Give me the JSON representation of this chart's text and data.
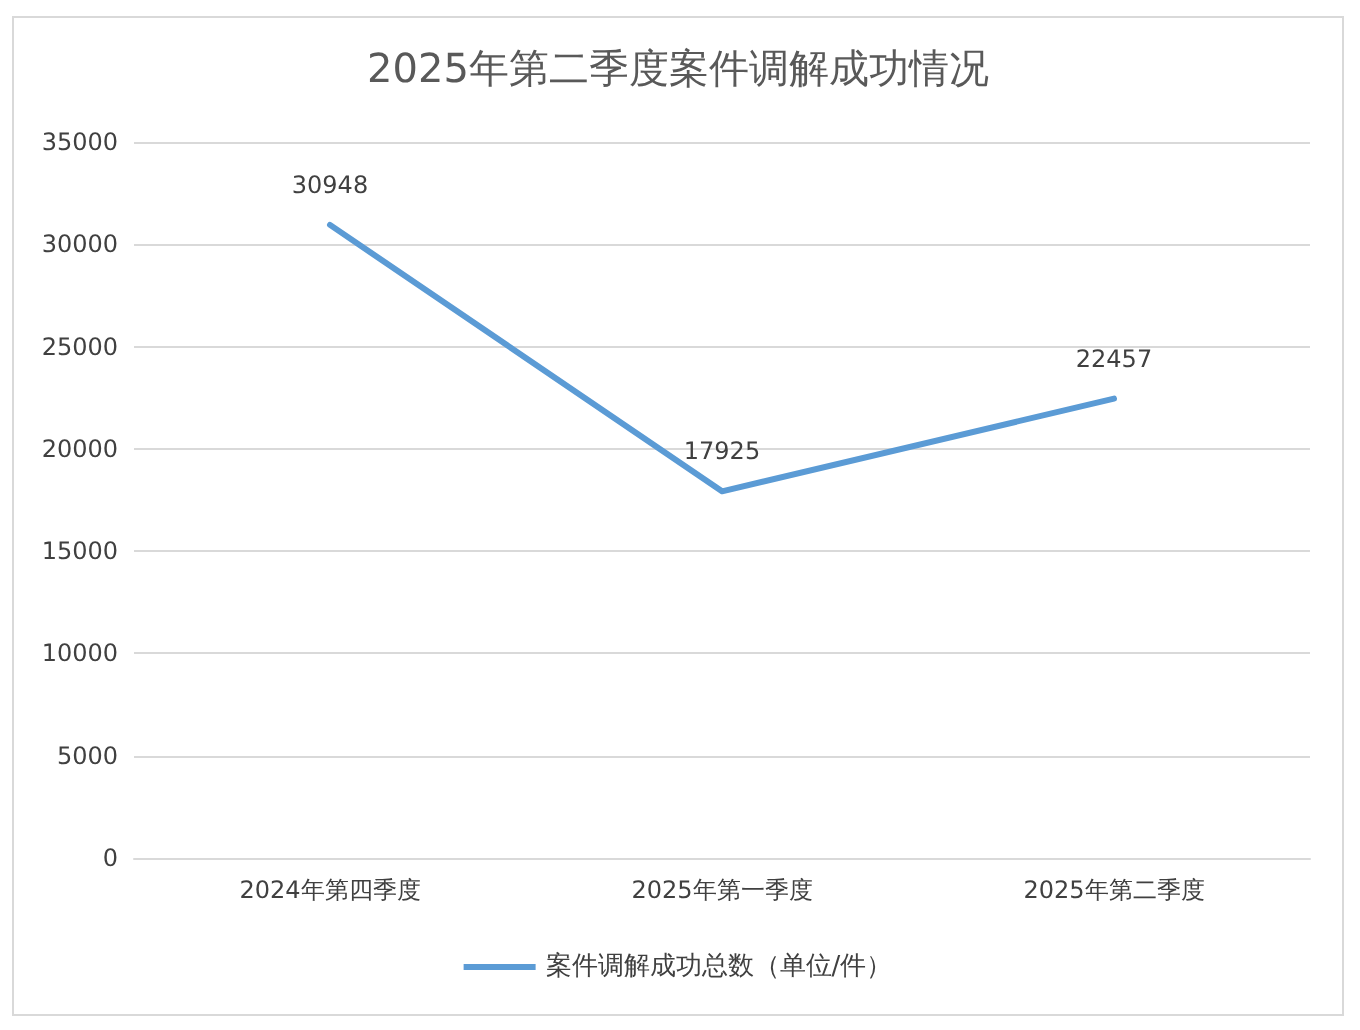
{
  "chart_data": {
    "type": "line",
    "title": "2025年第二季度案件调解成功情况",
    "categories": [
      "2024年第四季度",
      "2025年第一季度",
      "2025年第二季度"
    ],
    "series": [
      {
        "name": "案件调解成功总数（单位/件）",
        "color": "#5b9bd5",
        "values": [
          30948,
          17925,
          22457
        ]
      }
    ],
    "ylim": [
      0,
      35000
    ],
    "yticks": [
      0,
      5000,
      10000,
      15000,
      20000,
      25000,
      30000,
      35000
    ],
    "grid": "y",
    "legend": "bottom",
    "marker": "none",
    "data_labels": true
  }
}
